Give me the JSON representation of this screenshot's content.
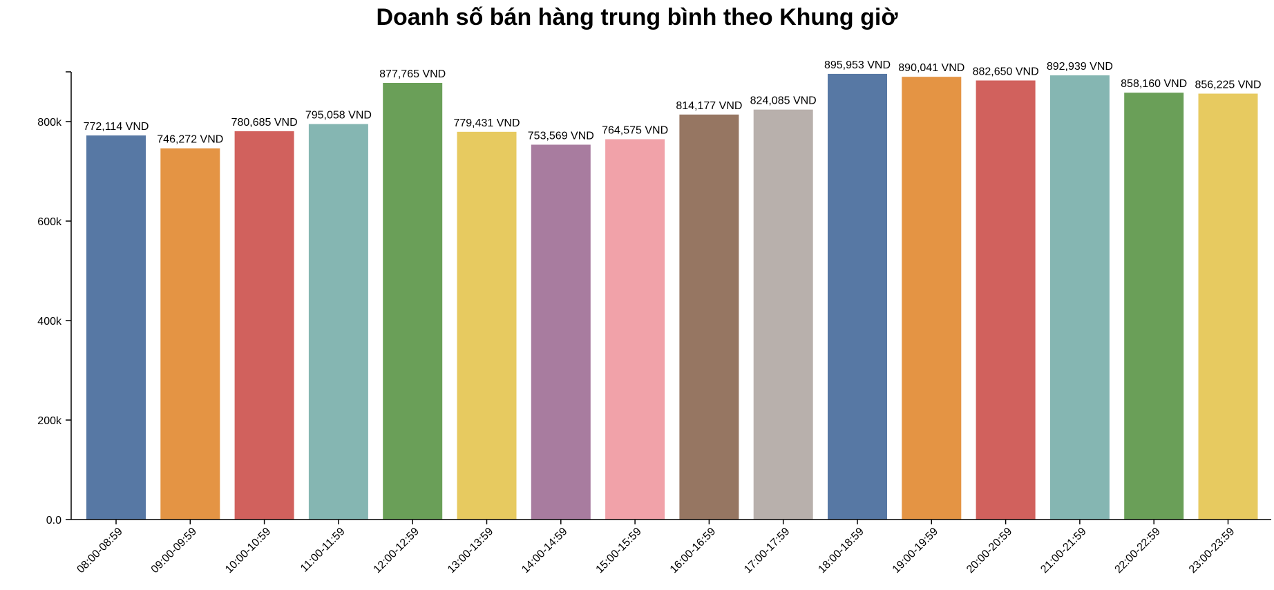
{
  "chart_data": {
    "type": "bar",
    "title": "Doanh số bán hàng trung bình theo Khung giờ",
    "categories": [
      "08:00-08:59",
      "09:00-09:59",
      "10:00-10:59",
      "11:00-11:59",
      "12:00-12:59",
      "13:00-13:59",
      "14:00-14:59",
      "15:00-15:59",
      "16:00-16:59",
      "17:00-17:59",
      "18:00-18:59",
      "19:00-19:59",
      "20:00-20:59",
      "21:00-21:59",
      "22:00-22:59",
      "23:00-23:59"
    ],
    "values": [
      772114,
      746272,
      780685,
      795058,
      877765,
      779431,
      753569,
      764575,
      814177,
      824085,
      895953,
      890041,
      882650,
      892939,
      858160,
      856225
    ],
    "value_labels": [
      "772,114 VND",
      "746,272 VND",
      "780,685 VND",
      "795,058 VND",
      "877,765 VND",
      "779,431 VND",
      "753,569 VND",
      "764,575 VND",
      "814,177 VND",
      "824,085 VND",
      "895,953 VND",
      "890,041 VND",
      "882,650 VND",
      "892,939 VND",
      "858,160 VND",
      "856,225 VND"
    ],
    "colors": [
      "#5778a4",
      "#e49444",
      "#d1615d",
      "#85b6b2",
      "#6a9f58",
      "#e7ca60",
      "#a87c9f",
      "#f1a2a9",
      "#967662",
      "#b8b0ac",
      "#5778a4",
      "#e49444",
      "#d1615d",
      "#85b6b2",
      "#6a9f58",
      "#e7ca60"
    ],
    "y_ticks": [
      0,
      200000,
      400000,
      600000,
      800000
    ],
    "y_tick_labels": [
      "0.0",
      "200k",
      "400k",
      "600k",
      "800k"
    ],
    "ylim": [
      0,
      900000
    ],
    "xlabel": "",
    "ylabel": "",
    "grid": false,
    "legend": "none"
  }
}
